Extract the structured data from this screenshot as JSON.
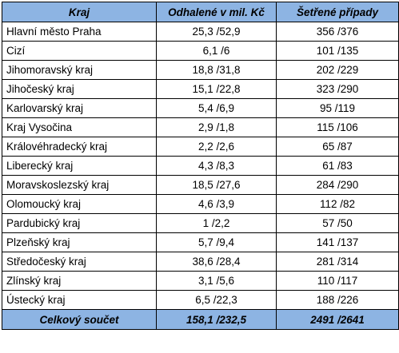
{
  "table": {
    "headers": {
      "kraj": "Kraj",
      "odhalene": "Odhalené v mil. Kč",
      "setrene": "Šetřené případy"
    },
    "rows": [
      {
        "kraj": "Hlavní město Praha",
        "odhalene": "25,3 /52,9",
        "setrene": "356 /376"
      },
      {
        "kraj": "Cizí",
        "odhalene": "6,1 /6",
        "setrene": "101 /135"
      },
      {
        "kraj": "Jihomoravský kraj",
        "odhalene": "18,8 /31,8",
        "setrene": "202 /229"
      },
      {
        "kraj": "Jihočeský kraj",
        "odhalene": "15,1 /22,8",
        "setrene": "323 /290"
      },
      {
        "kraj": "Karlovarský kraj",
        "odhalene": "5,4 /6,9",
        "setrene": "95 /119"
      },
      {
        "kraj": "Kraj Vysočina",
        "odhalene": "2,9 /1,8",
        "setrene": "115 /106"
      },
      {
        "kraj": "Královéhradecký kraj",
        "odhalene": "2,2 /2,6",
        "setrene": "65 /87"
      },
      {
        "kraj": "Liberecký kraj",
        "odhalene": "4,3 /8,3",
        "setrene": "61 /83"
      },
      {
        "kraj": "Moravskoslezský kraj",
        "odhalene": "18,5 /27,6",
        "setrene": "284 /290"
      },
      {
        "kraj": "Olomoucký kraj",
        "odhalene": "4,6 /3,9",
        "setrene": "112 /82"
      },
      {
        "kraj": "Pardubický kraj",
        "odhalene": "1 /2,2",
        "setrene": "57 /50"
      },
      {
        "kraj": "Plzeňský kraj",
        "odhalene": "5,7 /9,4",
        "setrene": "141 /137"
      },
      {
        "kraj": "Středočeský kraj",
        "odhalene": "38,6 /28,4",
        "setrene": "281 /314"
      },
      {
        "kraj": "Zlínský kraj",
        "odhalene": "3,1 /5,6",
        "setrene": "110 /117"
      },
      {
        "kraj": "Ústecký kraj",
        "odhalene": "6,5 /22,3",
        "setrene": "188 /226"
      }
    ],
    "total": {
      "kraj": "Celkový součet",
      "odhalene": "158,1 /232,5",
      "setrene": "2491 /2641"
    }
  },
  "colors": {
    "header_bg": "#8db4e3",
    "border": "#000000"
  }
}
